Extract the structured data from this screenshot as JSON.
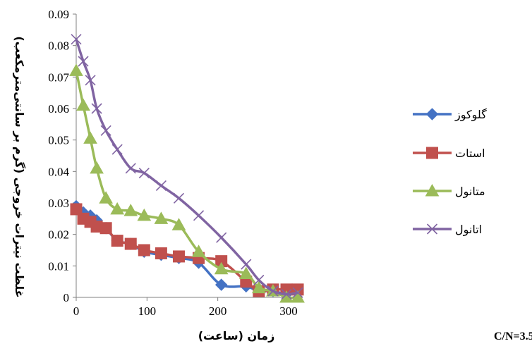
{
  "chart_data": {
    "type": "line",
    "xlabel": "زمان (ساعت)",
    "ylabel": "غلظت نیترات خروجی (گرم بر سانتی‌مترمکعب)",
    "xlim": [
      0,
      320
    ],
    "ylim": [
      0,
      0.09
    ],
    "x_ticks": [
      "0",
      "100",
      "200",
      "300"
    ],
    "y_ticks": [
      "0",
      "0.01",
      "0.02",
      "0.03",
      "0.04",
      "0.05",
      "0.06",
      "0.07",
      "0.08",
      "0.09"
    ],
    "grid": false,
    "legend_position": "right",
    "note": "C/N=3.5",
    "series": [
      {
        "name": "گلوکوز",
        "color": "#4472C4",
        "marker": "diamond",
        "points": [
          [
            0,
            0.029
          ],
          [
            10,
            0.027
          ],
          [
            20,
            0.026
          ],
          [
            29,
            0.0245
          ],
          [
            42,
            0.022
          ],
          [
            58,
            0.018
          ],
          [
            77,
            0.017
          ],
          [
            96,
            0.0145
          ],
          [
            120,
            0.0135
          ],
          [
            145,
            0.0125
          ],
          [
            173,
            0.011
          ],
          [
            205,
            0.004
          ],
          [
            240,
            0.0035
          ],
          [
            258,
            0.002
          ],
          [
            278,
            0.002
          ],
          [
            297,
            0.001
          ],
          [
            313,
            0.0015
          ]
        ]
      },
      {
        "name": "استات",
        "color": "#C0504D",
        "marker": "square",
        "points": [
          [
            0,
            0.028
          ],
          [
            10,
            0.025
          ],
          [
            20,
            0.024
          ],
          [
            29,
            0.0225
          ],
          [
            42,
            0.022
          ],
          [
            58,
            0.018
          ],
          [
            77,
            0.017
          ],
          [
            96,
            0.015
          ],
          [
            120,
            0.014
          ],
          [
            145,
            0.013
          ],
          [
            173,
            0.0125
          ],
          [
            205,
            0.0115
          ],
          [
            240,
            0.005
          ],
          [
            258,
            0.002
          ],
          [
            278,
            0.0025
          ],
          [
            297,
            0.0025
          ],
          [
            313,
            0.0025
          ]
        ]
      },
      {
        "name": "متانول",
        "color": "#9BBB59",
        "marker": "triangle",
        "points": [
          [
            0,
            0.072
          ],
          [
            10,
            0.061
          ],
          [
            20,
            0.0505
          ],
          [
            29,
            0.041
          ],
          [
            42,
            0.0315
          ],
          [
            58,
            0.028
          ],
          [
            77,
            0.0275
          ],
          [
            96,
            0.026
          ],
          [
            120,
            0.025
          ],
          [
            145,
            0.023
          ],
          [
            173,
            0.0145
          ],
          [
            205,
            0.009
          ],
          [
            240,
            0.0075
          ],
          [
            258,
            0.003
          ],
          [
            278,
            0.002
          ],
          [
            297,
            0.0
          ],
          [
            313,
            0.0
          ]
        ]
      },
      {
        "name": "اتانول",
        "color": "#8064A2",
        "marker": "x",
        "points": [
          [
            0,
            0.082
          ],
          [
            10,
            0.075
          ],
          [
            20,
            0.069
          ],
          [
            29,
            0.06
          ],
          [
            42,
            0.053
          ],
          [
            58,
            0.047
          ],
          [
            77,
            0.041
          ],
          [
            96,
            0.0395
          ],
          [
            120,
            0.0355
          ],
          [
            145,
            0.0315
          ],
          [
            173,
            0.026
          ],
          [
            205,
            0.019
          ],
          [
            240,
            0.0105
          ],
          [
            258,
            0.0055
          ],
          [
            278,
            0.002
          ],
          [
            297,
            0.001
          ],
          [
            313,
            0.0015
          ]
        ]
      }
    ]
  }
}
